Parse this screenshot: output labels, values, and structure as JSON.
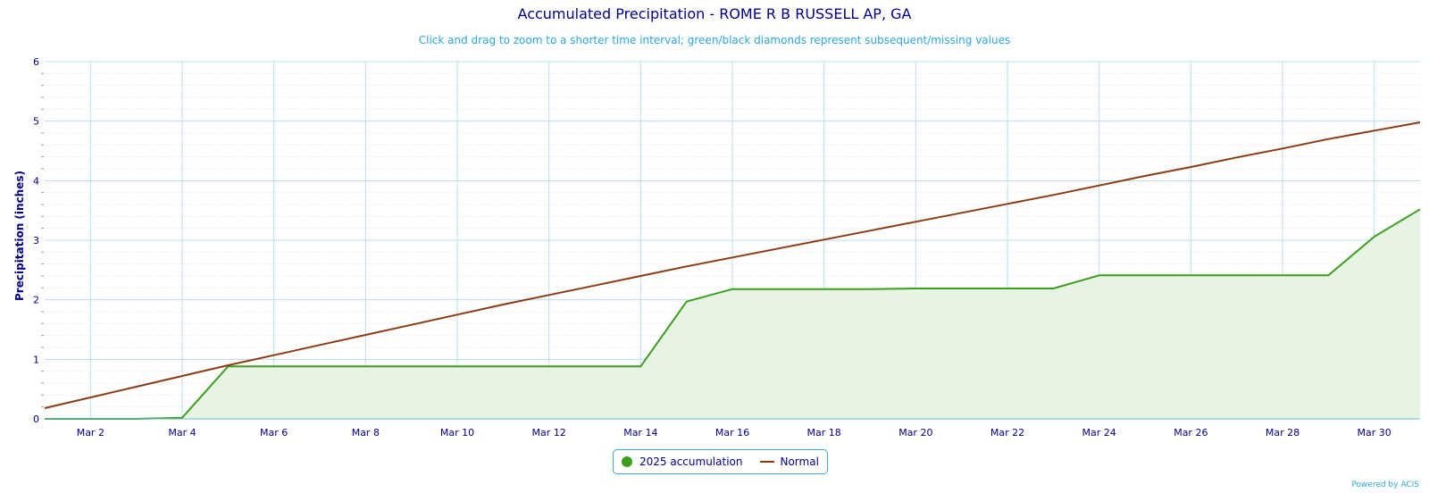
{
  "header": {
    "title": "Accumulated Precipitation - ROME R B RUSSELL AP, GA",
    "subtitle": "Click and drag to zoom to a shorter time interval; green/black diamonds represent subsequent/missing values"
  },
  "credits": "Powered by ACIS",
  "colors": {
    "accumulation": "#3d9e1e",
    "accumulation_fill": "#e8f4e3",
    "normal": "#8b3a14",
    "grid": "#b9dcee",
    "minor_grid": "#e6e6e6",
    "axis_text": "#00008b"
  },
  "chart_data": {
    "type": "area",
    "title": "Accumulated Precipitation - ROME R B RUSSELL AP, GA",
    "subtitle": "Click and drag to zoom to a shorter time interval; green/black diamonds represent subsequent/missing values",
    "xlabel": "",
    "ylabel": "Precipitation (inches)",
    "xlim": [
      1,
      31
    ],
    "ylim": [
      0,
      6
    ],
    "yticks": [
      0,
      1,
      2,
      3,
      4,
      5,
      6
    ],
    "xticks": [
      "Mar 2",
      "Mar 4",
      "Mar 6",
      "Mar 8",
      "Mar 10",
      "Mar 12",
      "Mar 14",
      "Mar 16",
      "Mar 18",
      "Mar 20",
      "Mar 22",
      "Mar 24",
      "Mar 26",
      "Mar 28",
      "Mar 30"
    ],
    "xtick_days": [
      2,
      4,
      6,
      8,
      10,
      12,
      14,
      16,
      18,
      20,
      22,
      24,
      26,
      28,
      30
    ],
    "grid": true,
    "legend_position": "bottom-center",
    "x": [
      1,
      2,
      3,
      4,
      5,
      6,
      7,
      8,
      9,
      10,
      11,
      12,
      13,
      14,
      15,
      16,
      17,
      18,
      19,
      20,
      21,
      22,
      23,
      24,
      25,
      26,
      27,
      28,
      29,
      30,
      31
    ],
    "series": [
      {
        "name": "2025 accumulation",
        "type": "area",
        "values": [
          0.0,
          0.0,
          0.0,
          0.02,
          0.88,
          0.88,
          0.88,
          0.88,
          0.88,
          0.88,
          0.88,
          0.88,
          0.88,
          0.88,
          1.97,
          2.18,
          2.18,
          2.18,
          2.18,
          2.19,
          2.19,
          2.19,
          2.19,
          2.41,
          2.41,
          2.41,
          2.41,
          2.41,
          2.41,
          3.06,
          3.52
        ]
      },
      {
        "name": "Normal",
        "type": "line",
        "values": [
          0.18,
          0.36,
          0.54,
          0.72,
          0.9,
          1.07,
          1.24,
          1.41,
          1.58,
          1.75,
          1.92,
          2.08,
          2.24,
          2.4,
          2.56,
          2.71,
          2.86,
          3.01,
          3.16,
          3.31,
          3.46,
          3.61,
          3.76,
          3.92,
          4.08,
          4.23,
          4.39,
          4.54,
          4.7,
          4.84,
          4.98
        ]
      }
    ]
  },
  "legend": {
    "items": [
      {
        "label": "2025 accumulation"
      },
      {
        "label": "Normal"
      }
    ]
  }
}
